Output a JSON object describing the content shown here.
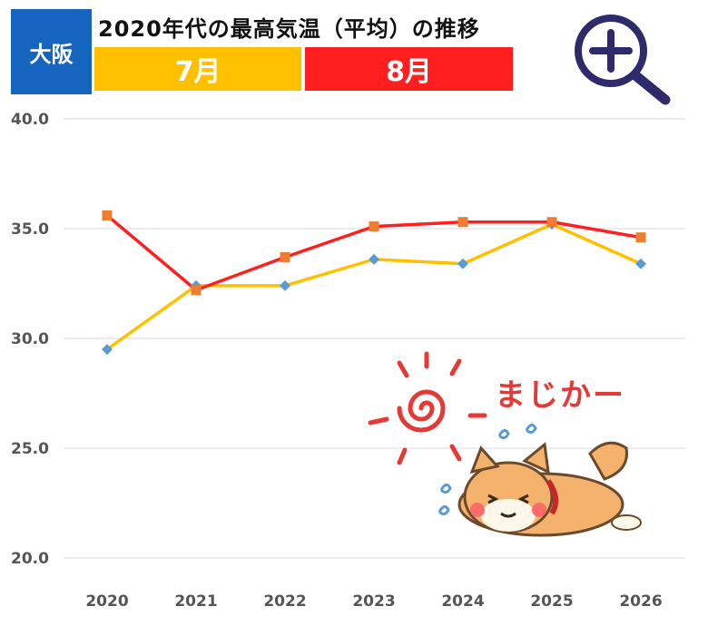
{
  "header": {
    "city": "大阪",
    "title": "2020年代の最高気温（平均）の推移",
    "legend_july": "7月",
    "legend_august": "8月"
  },
  "colors": {
    "city_badge": "#1565c0",
    "july": "#ffc000",
    "august": "#ff1f1f",
    "july_marker": "#5b9bd5",
    "august_marker": "#ed7d31",
    "grid": "#d9d9d9",
    "zoom_icon": "#2e2a6b",
    "sticker_text": "#e53935"
  },
  "icons": {
    "zoom": "zoom-in-icon",
    "sticker": "sun-and-shiba-dog-sticker"
  },
  "sticker": {
    "text": "まじかー"
  },
  "chart_data": {
    "type": "line",
    "x": [
      "2020",
      "2021",
      "2022",
      "2023",
      "2024",
      "2025",
      "2026"
    ],
    "series": [
      {
        "name": "7月",
        "values": [
          29.5,
          32.4,
          32.4,
          33.6,
          33.4,
          35.2,
          33.4
        ]
      },
      {
        "name": "8月",
        "values": [
          35.6,
          32.2,
          33.7,
          35.1,
          35.3,
          35.3,
          34.6
        ]
      }
    ],
    "ylim": [
      20.0,
      40.0
    ],
    "yticks": [
      "20.0",
      "25.0",
      "30.0",
      "35.0",
      "40.0"
    ],
    "grid": true
  }
}
